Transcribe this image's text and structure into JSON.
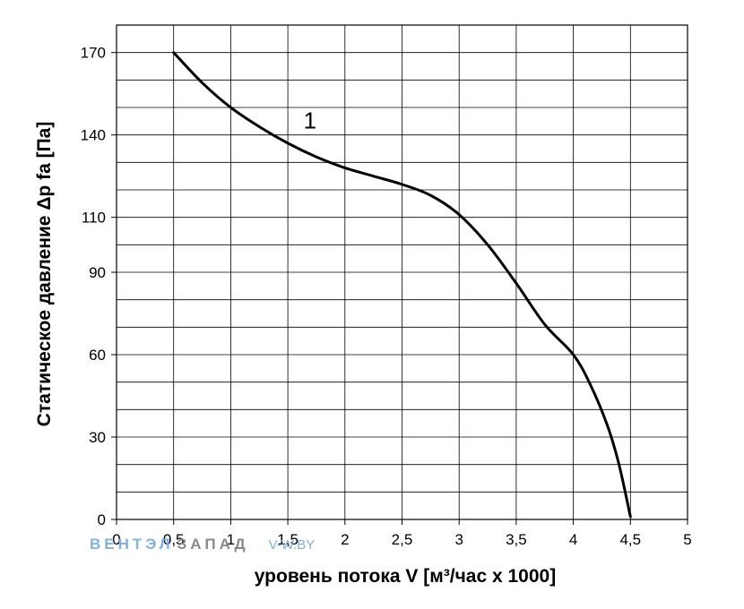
{
  "chart_data": {
    "type": "line",
    "xlabel": "уровень потока  V [м³/час x 1000]",
    "ylabel": "Статическое давление  Δp fa [Па]",
    "xlim": [
      0,
      5
    ],
    "ylim": [
      0,
      180
    ],
    "x_ticks": [
      0,
      0.5,
      1,
      1.5,
      2,
      2.5,
      3,
      3.5,
      4,
      4.5,
      5
    ],
    "x_tick_labels": [
      "0",
      "0,5",
      "1",
      "1,5",
      "2",
      "2,5",
      "3",
      "3,5",
      "4",
      "4,5",
      "5"
    ],
    "y_ticks": [
      0,
      30,
      60,
      90,
      110,
      140,
      170
    ],
    "y_tick_labels": [
      "0",
      "30",
      "60",
      "90",
      "110",
      "140",
      "170"
    ],
    "grid": true,
    "series": [
      {
        "name": "1",
        "color": "#000000",
        "x": [
          0.5,
          0.75,
          1.0,
          1.25,
          1.5,
          1.75,
          2.0,
          2.25,
          2.5,
          2.75,
          3.0,
          3.25,
          3.5,
          3.75,
          4.0,
          4.15,
          4.3,
          4.4,
          4.5
        ],
        "y": [
          170,
          159,
          150,
          143,
          137,
          132,
          128,
          125,
          122,
          118,
          111,
          100,
          86,
          71,
          60,
          49,
          34,
          20,
          1
        ]
      }
    ],
    "annotations": [
      {
        "text": "1",
        "x": 1.7,
        "y": 145
      }
    ]
  },
  "watermark": {
    "part1": "ВЕНТЭЛ",
    "part2": "ЗАПАД",
    "part3": "V-W.BY",
    "color1": "#7fb2e0",
    "color2": "#8a8a8a"
  }
}
